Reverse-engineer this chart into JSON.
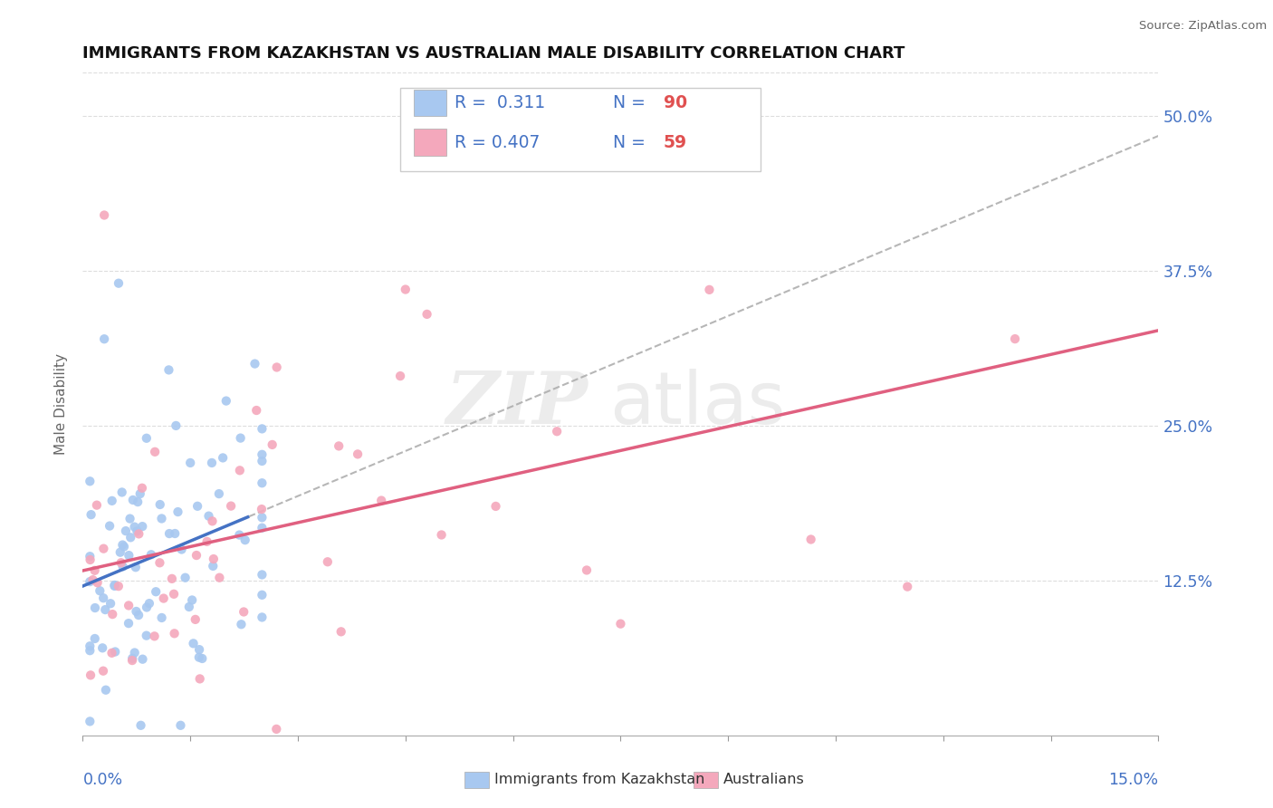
{
  "title": "IMMIGRANTS FROM KAZAKHSTAN VS AUSTRALIAN MALE DISABILITY CORRELATION CHART",
  "source": "Source: ZipAtlas.com",
  "ylabel": "Male Disability",
  "xmin": 0.0,
  "xmax": 0.15,
  "ymin": 0.0,
  "ymax": 0.535,
  "yticks": [
    0.0,
    0.125,
    0.25,
    0.375,
    0.5
  ],
  "ytick_labels": [
    "",
    "12.5%",
    "25.0%",
    "37.5%",
    "50.0%"
  ],
  "watermark_zip": "ZIP",
  "watermark_atlas": "atlas",
  "blue_color": "#A8C8F0",
  "pink_color": "#F4A8BC",
  "blue_line_color": "#4472C4",
  "pink_line_color": "#E06080",
  "dash_line_color": "#AAAAAA",
  "background_color": "#FFFFFF",
  "plot_bg_color": "#FFFFFF",
  "legend_color": "#4472C4",
  "grid_color": "#DDDDDD"
}
